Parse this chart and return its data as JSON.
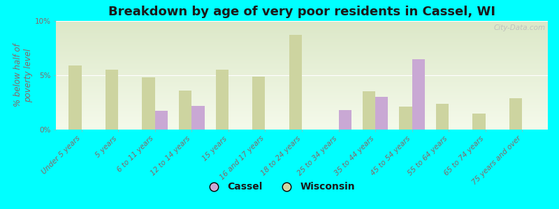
{
  "title": "Breakdown by age of very poor residents in Cassel, WI",
  "ylabel": "% below half of\npoverty level",
  "categories": [
    "Under 5 years",
    "5 years",
    "6 to 11 years",
    "12 to 14 years",
    "15 years",
    "16 and 17 years",
    "18 to 24 years",
    "25 to 34 years",
    "35 to 44 years",
    "45 to 54 years",
    "55 to 64 years",
    "65 to 74 years",
    "75 years and over"
  ],
  "cassel": [
    0,
    0,
    1.7,
    2.2,
    0,
    0,
    0,
    1.8,
    3.0,
    6.5,
    0,
    0,
    0
  ],
  "wisconsin": [
    5.9,
    5.5,
    4.8,
    3.6,
    5.5,
    4.9,
    8.7,
    0,
    3.5,
    2.1,
    2.4,
    1.5,
    2.9
  ],
  "cassel_color": "#c9a8d4",
  "wisconsin_color": "#cdd4a0",
  "bg_top": "#dce8c8",
  "bg_bottom": "#f5f8e8",
  "bg_figure": "#00ffff",
  "ylim": [
    0,
    10
  ],
  "yticks": [
    0,
    5,
    10
  ],
  "ytick_labels": [
    "0%",
    "5%",
    "10%"
  ],
  "bar_width": 0.35,
  "title_fontsize": 13,
  "axis_label_fontsize": 8.5,
  "tick_fontsize": 7.5,
  "legend_fontsize": 10,
  "tick_color": "#886666",
  "ylabel_color": "#886666"
}
